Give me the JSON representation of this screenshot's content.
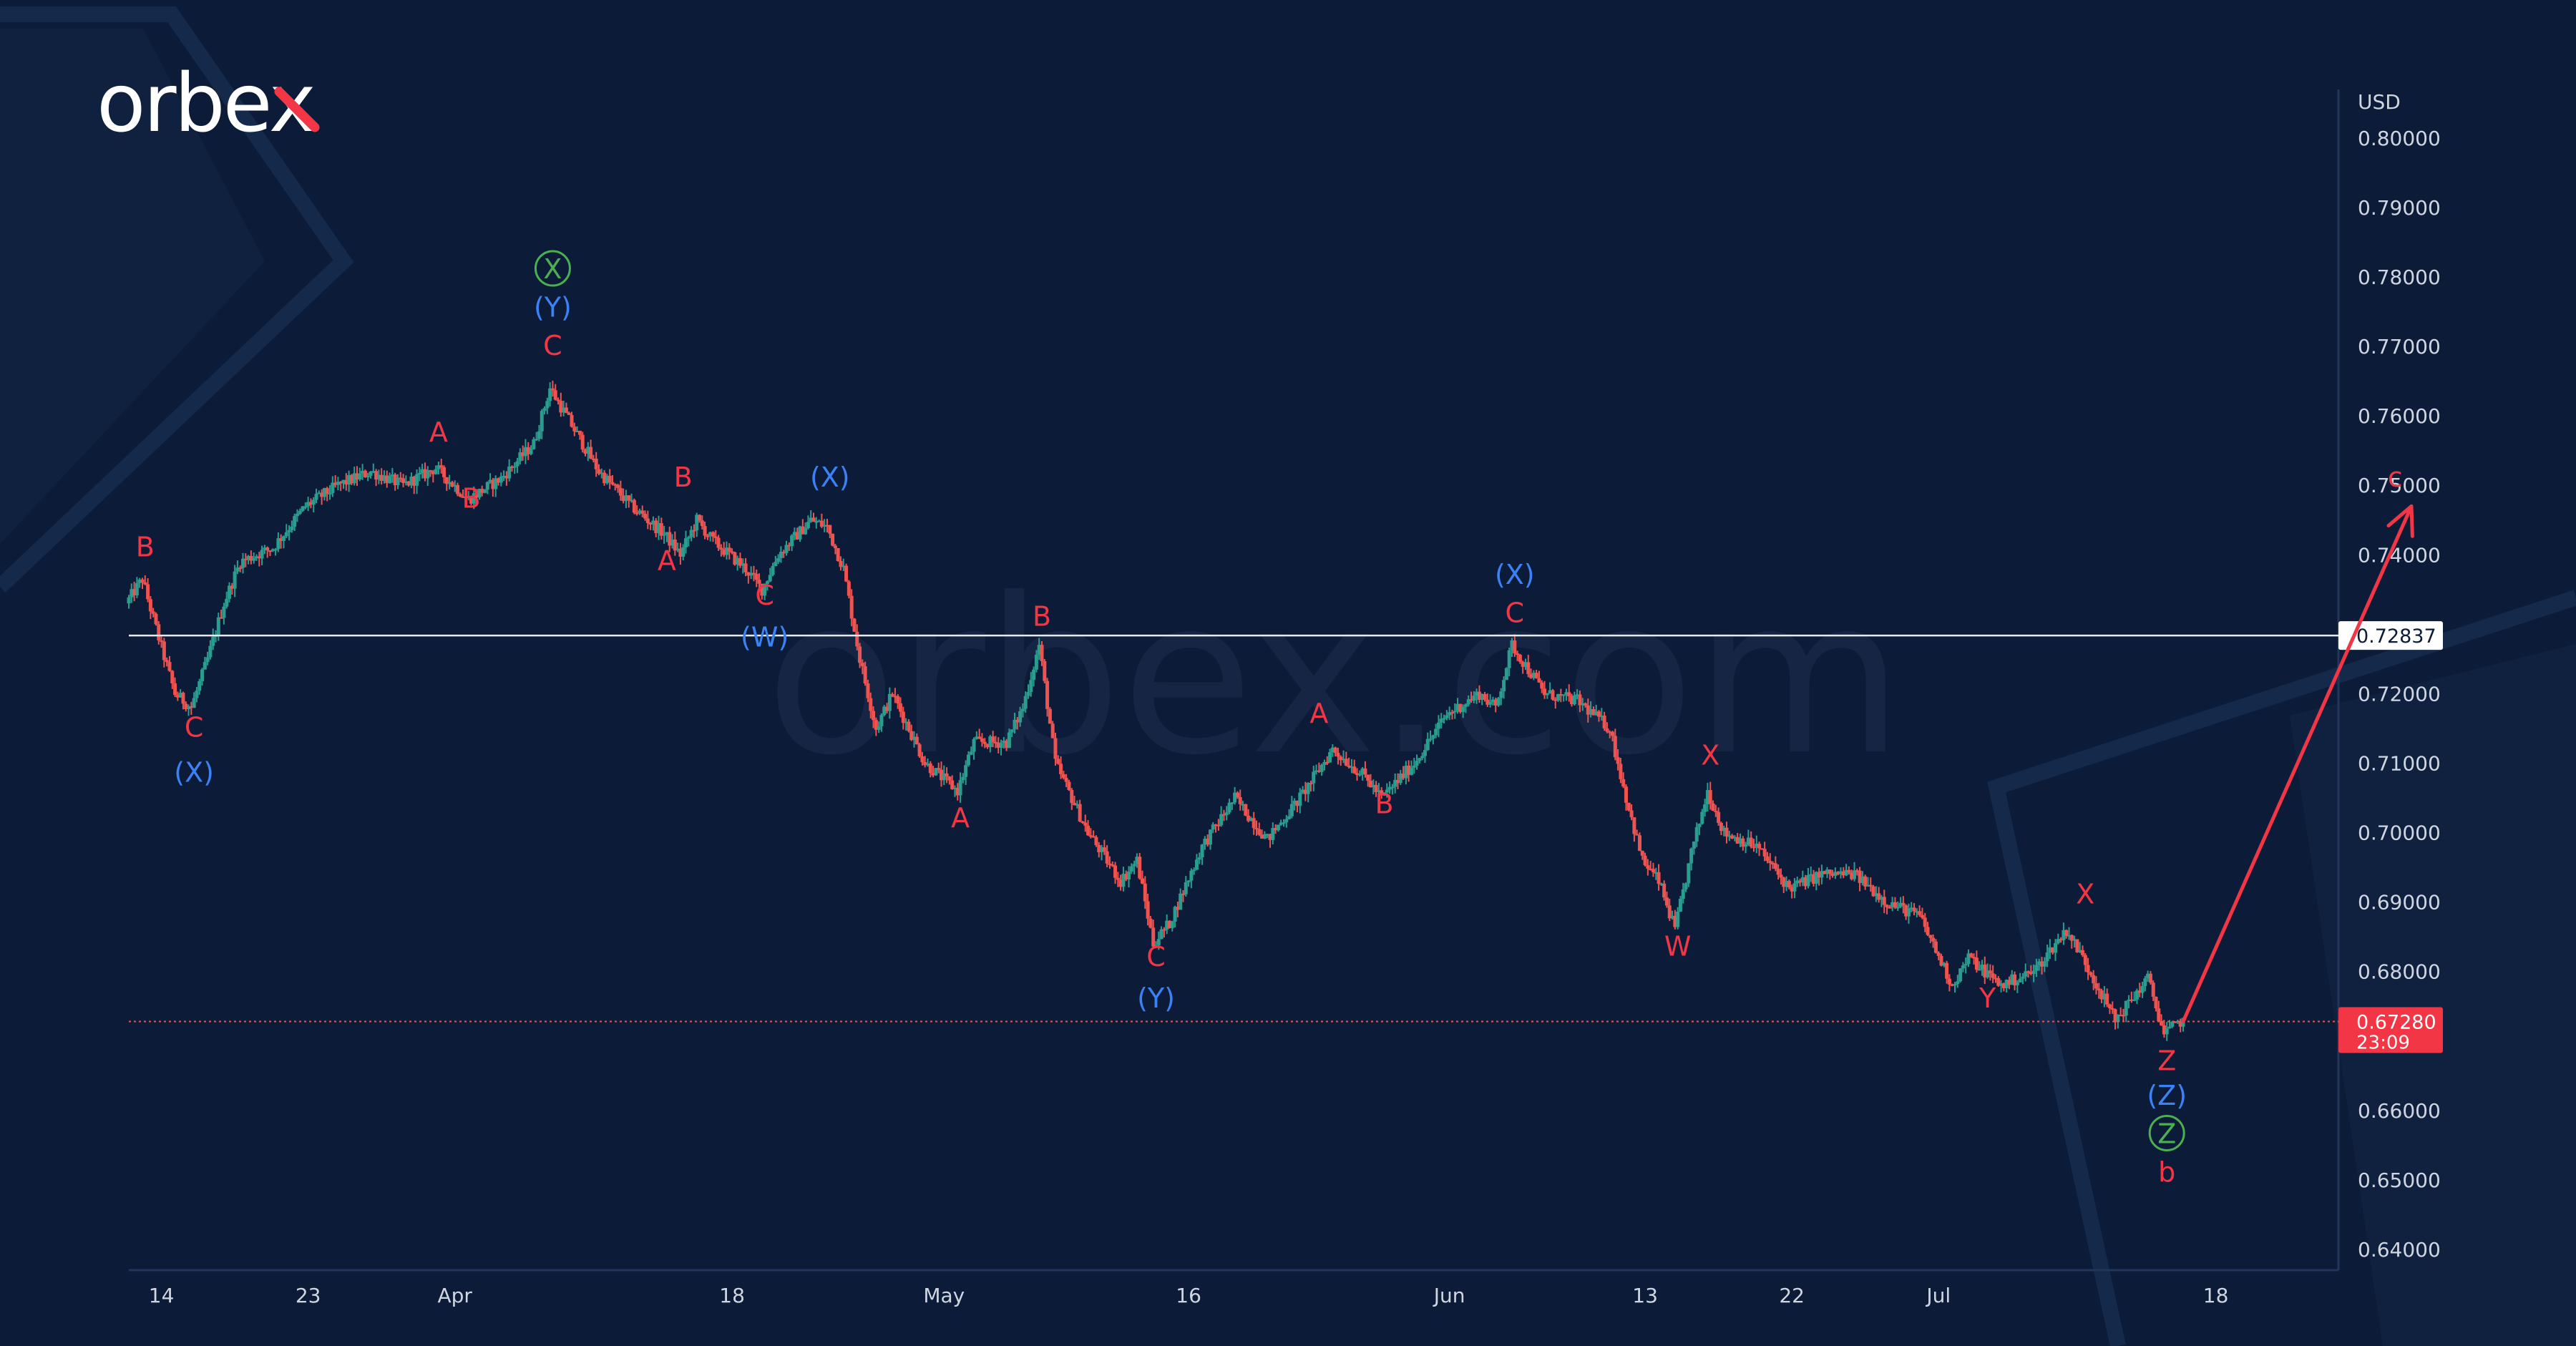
{
  "brand": {
    "logo_text": "orbex",
    "watermark": "orbex.com"
  },
  "colors": {
    "background": "#0c1c38",
    "bull_candle": "#2a9d8f",
    "bear_candle": "#ef5350",
    "wave_red": "#f23645",
    "wave_blue": "#3b82f6",
    "wave_green": "#4caf50",
    "level_line": "#e8eaed",
    "current_price_bg": "#f23645"
  },
  "chart_data": {
    "type": "candlestick",
    "title": "",
    "currency_label": "USD",
    "y_ticks": [
      "0.80000",
      "0.79000",
      "0.78000",
      "0.77000",
      "0.76000",
      "0.75000",
      "0.74000",
      "0.72000",
      "0.71000",
      "0.70000",
      "0.69000",
      "0.68000",
      "0.66000",
      "0.65000",
      "0.64000"
    ],
    "ylim": [
      0.637,
      0.807
    ],
    "x_ticks": [
      {
        "label": "14",
        "date": "2022-03-14"
      },
      {
        "label": "23",
        "date": "2022-03-23"
      },
      {
        "label": "Apr",
        "date": "2022-04-01"
      },
      {
        "label": "18",
        "date": "2022-04-18"
      },
      {
        "label": "May",
        "date": "2022-05-01"
      },
      {
        "label": "16",
        "date": "2022-05-16"
      },
      {
        "label": "Jun",
        "date": "2022-06-01"
      },
      {
        "label": "13",
        "date": "2022-06-13"
      },
      {
        "label": "22",
        "date": "2022-06-22"
      },
      {
        "label": "Jul",
        "date": "2022-07-01"
      },
      {
        "label": "18",
        "date": "2022-07-18"
      }
    ],
    "xlim": [
      "2022-03-12",
      "2022-07-30"
    ],
    "price_path": [
      [
        "2022-03-12",
        0.733
      ],
      [
        "2022-03-13",
        0.7365
      ],
      [
        "2022-03-14",
        0.728
      ],
      [
        "2022-03-15",
        0.72
      ],
      [
        "2022-03-16",
        0.718
      ],
      [
        "2022-03-17",
        0.725
      ],
      [
        "2022-03-18",
        0.733
      ],
      [
        "2022-03-19",
        0.739
      ],
      [
        "2022-03-21",
        0.741
      ],
      [
        "2022-03-23",
        0.747
      ],
      [
        "2022-03-25",
        0.75
      ],
      [
        "2022-03-27",
        0.752
      ],
      [
        "2022-03-29",
        0.75
      ],
      [
        "2022-03-31",
        0.7525
      ],
      [
        "2022-04-02",
        0.748
      ],
      [
        "2022-04-04",
        0.751
      ],
      [
        "2022-04-06",
        0.756
      ],
      [
        "2022-04-07",
        0.764
      ],
      [
        "2022-04-08",
        0.76
      ],
      [
        "2022-04-10",
        0.752
      ],
      [
        "2022-04-12",
        0.747
      ],
      [
        "2022-04-14",
        0.743
      ],
      [
        "2022-04-15",
        0.74
      ],
      [
        "2022-04-16",
        0.745
      ],
      [
        "2022-04-17",
        0.742
      ],
      [
        "2022-04-19",
        0.738
      ],
      [
        "2022-04-20",
        0.735
      ],
      [
        "2022-04-21",
        0.74
      ],
      [
        "2022-04-23",
        0.745
      ],
      [
        "2022-04-24",
        0.744
      ],
      [
        "2022-04-25",
        0.738
      ],
      [
        "2022-04-26",
        0.725
      ],
      [
        "2022-04-27",
        0.715
      ],
      [
        "2022-04-28",
        0.72
      ],
      [
        "2022-04-30",
        0.71
      ],
      [
        "2022-05-02",
        0.706
      ],
      [
        "2022-05-03",
        0.713
      ],
      [
        "2022-05-05",
        0.713
      ],
      [
        "2022-05-06",
        0.718
      ],
      [
        "2022-05-07",
        0.727
      ],
      [
        "2022-05-08",
        0.71
      ],
      [
        "2022-05-10",
        0.7
      ],
      [
        "2022-05-12",
        0.693
      ],
      [
        "2022-05-13",
        0.696
      ],
      [
        "2022-05-14",
        0.684
      ],
      [
        "2022-05-15",
        0.687
      ],
      [
        "2022-05-17",
        0.698
      ],
      [
        "2022-05-19",
        0.705
      ],
      [
        "2022-05-21",
        0.699
      ],
      [
        "2022-05-23",
        0.705
      ],
      [
        "2022-05-25",
        0.712
      ],
      [
        "2022-05-27",
        0.708
      ],
      [
        "2022-05-28",
        0.705
      ],
      [
        "2022-05-30",
        0.71
      ],
      [
        "2022-06-01",
        0.717
      ],
      [
        "2022-06-03",
        0.72
      ],
      [
        "2022-06-04",
        0.718
      ],
      [
        "2022-06-05",
        0.727
      ],
      [
        "2022-06-07",
        0.72
      ],
      [
        "2022-06-09",
        0.719
      ],
      [
        "2022-06-11",
        0.715
      ],
      [
        "2022-06-12",
        0.705
      ],
      [
        "2022-06-13",
        0.696
      ],
      [
        "2022-06-14",
        0.693
      ],
      [
        "2022-06-15",
        0.686
      ],
      [
        "2022-06-16",
        0.697
      ],
      [
        "2022-06-17",
        0.706
      ],
      [
        "2022-06-18",
        0.7
      ],
      [
        "2022-06-20",
        0.698
      ],
      [
        "2022-06-22",
        0.692
      ],
      [
        "2022-06-24",
        0.694
      ],
      [
        "2022-06-26",
        0.694
      ],
      [
        "2022-06-28",
        0.69
      ],
      [
        "2022-06-30",
        0.688
      ],
      [
        "2022-07-02",
        0.678
      ],
      [
        "2022-07-03",
        0.682
      ],
      [
        "2022-07-05",
        0.678
      ],
      [
        "2022-07-07",
        0.68
      ],
      [
        "2022-07-09",
        0.686
      ],
      [
        "2022-07-10",
        0.682
      ],
      [
        "2022-07-12",
        0.673
      ],
      [
        "2022-07-14",
        0.679
      ],
      [
        "2022-07-15",
        0.671
      ],
      [
        "2022-07-16",
        0.6728
      ]
    ],
    "levels": [
      {
        "name": "marked-level",
        "value": 0.72837,
        "label": "0.72837",
        "style": "solid"
      },
      {
        "name": "current-price",
        "value": 0.6728,
        "label": "0.67280",
        "timer": "23:09",
        "style": "dotted"
      }
    ],
    "projection": {
      "from": [
        "2022-07-16",
        0.6728
      ],
      "to": [
        "2022-07-30",
        0.747
      ]
    },
    "wave_labels": [
      {
        "text": "B",
        "date": "2022-03-13",
        "price": 0.74,
        "color": "red",
        "circled": false
      },
      {
        "text": "C",
        "date": "2022-03-16",
        "price": 0.714,
        "color": "red",
        "circled": false
      },
      {
        "text": "(X)",
        "date": "2022-03-16",
        "price": 0.7075,
        "color": "blue",
        "circled": false
      },
      {
        "text": "A",
        "date": "2022-03-31",
        "price": 0.7565,
        "color": "red",
        "circled": false
      },
      {
        "text": "B",
        "date": "2022-04-02",
        "price": 0.747,
        "color": "red",
        "circled": false
      },
      {
        "text": "X",
        "date": "2022-04-07",
        "price": 0.78,
        "color": "green",
        "circled": true
      },
      {
        "text": "(Y)",
        "date": "2022-04-07",
        "price": 0.7745,
        "color": "blue",
        "circled": false
      },
      {
        "text": "C",
        "date": "2022-04-07",
        "price": 0.769,
        "color": "red",
        "circled": false
      },
      {
        "text": "B",
        "date": "2022-04-15",
        "price": 0.75,
        "color": "red",
        "circled": false
      },
      {
        "text": "A",
        "date": "2022-04-14",
        "price": 0.738,
        "color": "red",
        "circled": false
      },
      {
        "text": "C",
        "date": "2022-04-20",
        "price": 0.733,
        "color": "red",
        "circled": false
      },
      {
        "text": "(W)",
        "date": "2022-04-20",
        "price": 0.727,
        "color": "blue",
        "circled": false
      },
      {
        "text": "(X)",
        "date": "2022-04-24",
        "price": 0.75,
        "color": "blue",
        "circled": false
      },
      {
        "text": "B",
        "date": "2022-05-07",
        "price": 0.73,
        "color": "red",
        "circled": false
      },
      {
        "text": "A",
        "date": "2022-05-02",
        "price": 0.701,
        "color": "red",
        "circled": false
      },
      {
        "text": "C",
        "date": "2022-05-14",
        "price": 0.681,
        "color": "red",
        "circled": false
      },
      {
        "text": "(Y)",
        "date": "2022-05-14",
        "price": 0.675,
        "color": "blue",
        "circled": false
      },
      {
        "text": "A",
        "date": "2022-05-24",
        "price": 0.716,
        "color": "red",
        "circled": false
      },
      {
        "text": "B",
        "date": "2022-05-28",
        "price": 0.703,
        "color": "red",
        "circled": false
      },
      {
        "text": "(X)",
        "date": "2022-06-05",
        "price": 0.736,
        "color": "blue",
        "circled": false
      },
      {
        "text": "C",
        "date": "2022-06-05",
        "price": 0.7305,
        "color": "red",
        "circled": false
      },
      {
        "text": "X",
        "date": "2022-06-17",
        "price": 0.71,
        "color": "red",
        "circled": false
      },
      {
        "text": "W",
        "date": "2022-06-15",
        "price": 0.6825,
        "color": "red",
        "circled": false
      },
      {
        "text": "X",
        "date": "2022-07-10",
        "price": 0.69,
        "color": "red",
        "circled": false
      },
      {
        "text": "Y",
        "date": "2022-07-04",
        "price": 0.675,
        "color": "red",
        "circled": false
      },
      {
        "text": "Z",
        "date": "2022-07-15",
        "price": 0.666,
        "color": "red",
        "circled": false
      },
      {
        "text": "(Z)",
        "date": "2022-07-15",
        "price": 0.661,
        "color": "blue",
        "circled": false
      },
      {
        "text": "Z",
        "date": "2022-07-15",
        "price": 0.6555,
        "color": "green",
        "circled": true
      },
      {
        "text": "b",
        "date": "2022-07-15",
        "price": 0.65,
        "color": "red",
        "circled": false
      },
      {
        "text": "c",
        "date": "2022-07-29",
        "price": 0.75,
        "color": "red",
        "circled": false
      }
    ]
  }
}
